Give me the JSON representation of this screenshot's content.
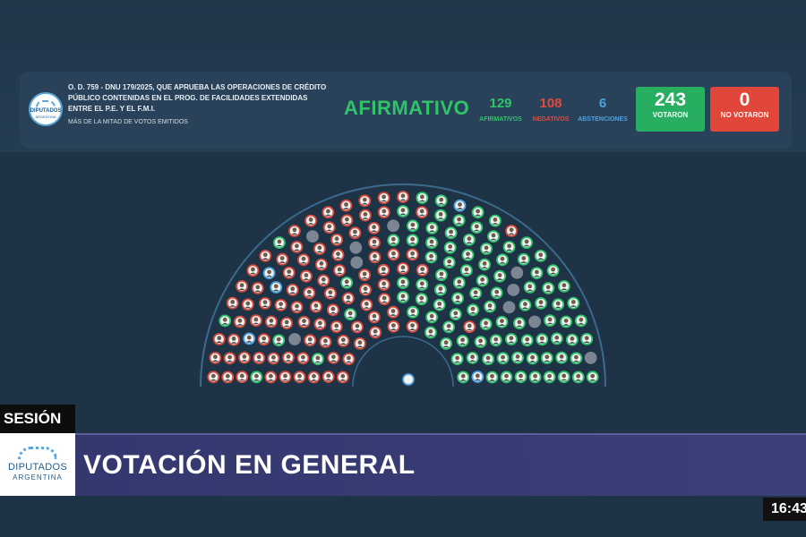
{
  "motion": {
    "title": "O. D. 759 - DNU 179/2025, QUE APRUEBA LAS OPERACIONES DE CRÉDITO PÚBLICO CONTENIDAS EN EL PROG. DE FACILIDADES EXTENDIDAS ENTRE EL P.E. Y EL F.M.I.",
    "majority": "MÁS DE LA MITAD DE VOTOS EMITIDOS"
  },
  "logo_small": {
    "line1": "DIPUTADOS",
    "line2": "ARGENTINA"
  },
  "result": {
    "label": "AFIRMATIVO",
    "color": "#2ec46a"
  },
  "counts": {
    "affirmative": {
      "value": "129",
      "label": "AFIRMATIVOS",
      "color": "#2ec46a"
    },
    "negative": {
      "value": "108",
      "label": "NEGATIVOS",
      "color": "#e24a3c"
    },
    "abstentions": {
      "value": "6",
      "label": "ABSTENCIONES",
      "color": "#4aa3e0"
    }
  },
  "voted": {
    "value": "243",
    "label": "VOTARON",
    "color": "#27ae60"
  },
  "not_voted": {
    "value": "0",
    "label": "NO VOTARON",
    "color": "#e0463a"
  },
  "chamber": {
    "rows": 10,
    "seat_colors": {
      "affirmative": "#2ec46a",
      "negative": "#d84a3c",
      "abstention": "#4aa3e0",
      "empty": "#7b8692"
    }
  },
  "lower_third": {
    "session_label": "SESIÓN",
    "banner": "VOTACIÓN EN GENERAL",
    "logo_line1": "DIPUTADOS",
    "logo_line2": "ARGENTINA"
  },
  "clock": "16:43"
}
